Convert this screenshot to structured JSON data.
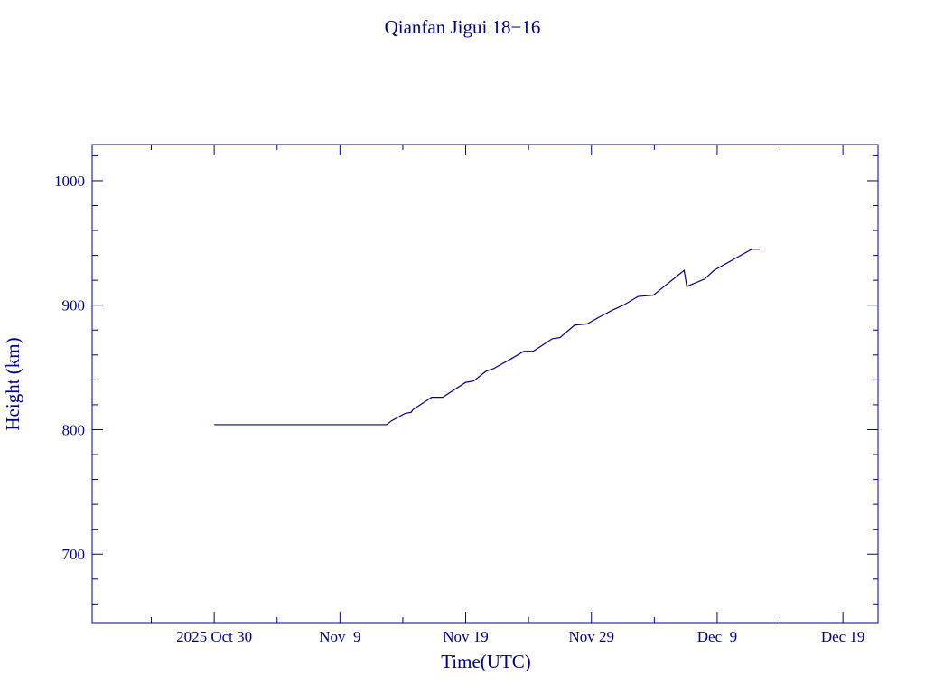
{
  "chart_data": {
    "type": "line",
    "title": "Qianfan Jigui 18−16",
    "x_label": "Time(UTC)",
    "y_label": "Height (km)",
    "x": [
      "2025-10-30T00:00",
      "2025-11-12T17:00",
      "2025-11-13T02:00",
      "2025-11-14T04:00",
      "2025-11-14T16:00",
      "2025-11-14T19:00",
      "2025-11-16T07:00",
      "2025-11-17T04:00",
      "2025-11-19T00:00",
      "2025-11-19T15:00",
      "2025-11-20T15:00",
      "2025-11-21T05:00",
      "2025-11-22T15:00",
      "2025-11-23T15:00",
      "2025-11-24T09:00",
      "2025-11-25T21:00",
      "2025-11-26T12:00",
      "2025-11-27T16:00",
      "2025-11-28T16:00",
      "2025-11-29T13:00",
      "2025-11-30T16:00",
      "2025-12-01T13:00",
      "2025-12-02T17:00",
      "2025-12-03T22:00",
      "2025-12-06T09:00",
      "2025-12-06T14:00",
      "2025-12-08T00:00",
      "2025-12-08T18:00",
      "2025-12-11T18:00",
      "2025-12-12T09:00"
    ],
    "series": [
      {
        "name": "Height",
        "color": "#00008b",
        "values": [
          804,
          804,
          807,
          813,
          814,
          816,
          826,
          826,
          838,
          839,
          847,
          849,
          857,
          863,
          863,
          873,
          874,
          884,
          885,
          890,
          896,
          900,
          907,
          908,
          928,
          915,
          921,
          928,
          945,
          945
        ]
      }
    ],
    "xlim": [
      "2025-10-20T07:00",
      "2025-12-21T19:00"
    ],
    "xticks": [
      {
        "value": "2025-10-30T00:00",
        "label": "2025 Oct 30"
      },
      {
        "value": "2025-11-09T00:00",
        "label": "Nov  9"
      },
      {
        "value": "2025-11-19T00:00",
        "label": "Nov 19"
      },
      {
        "value": "2025-11-29T00:00",
        "label": "Nov 29"
      },
      {
        "value": "2025-12-09T00:00",
        "label": "Dec  9"
      },
      {
        "value": "2025-12-19T00:00",
        "label": "Dec 19"
      }
    ],
    "xminorticks": [
      "2025-10-25T00:00",
      "2025-11-04T00:00",
      "2025-11-14T00:00",
      "2025-11-24T00:00",
      "2025-12-04T00:00",
      "2025-12-14T00:00"
    ],
    "ylim": [
      645,
      1029
    ],
    "yticks": [
      700,
      800,
      900,
      1000
    ],
    "yminorticks": [
      660,
      680,
      720,
      740,
      760,
      780,
      820,
      840,
      860,
      880,
      920,
      940,
      960,
      980,
      1020
    ],
    "color": "#00008b"
  }
}
